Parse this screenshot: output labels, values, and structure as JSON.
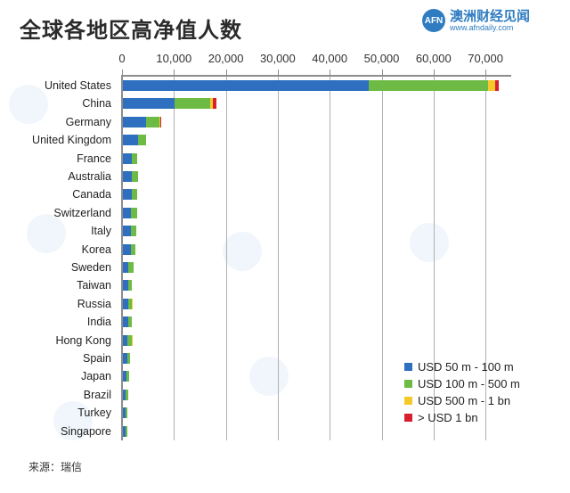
{
  "header": {
    "title": "全球各地区高净值人数",
    "logo_mark": "AFN",
    "logo_name": "澳洲财经见闻",
    "logo_url": "www.afndaily.com"
  },
  "footer": {
    "source": "来源：瑞信"
  },
  "colors": {
    "USD 50 m - 100 m": "#2e6fbf",
    "USD 100 m - 500 m": "#6dbb45",
    "USD 500 m - 1 bn": "#f5c92a",
    "> USD 1 bn": "#d6202f"
  },
  "chart_data": {
    "type": "bar",
    "orientation": "horizontal",
    "stacked": true,
    "title": "全球各地区高净值人数",
    "xlabel": "",
    "ylabel": "",
    "xlim": [
      0,
      75000
    ],
    "xticks": [
      "0",
      "10,000",
      "20,000",
      "30,000",
      "40,000",
      "50,000",
      "60,000",
      "70,000"
    ],
    "grid": true,
    "legend_position": "bottom-right",
    "categories": [
      "United States",
      "China",
      "Germany",
      "United Kingdom",
      "France",
      "Australia",
      "Canada",
      "Switzerland",
      "Italy",
      "Korea",
      "Sweden",
      "Taiwan",
      "Russia",
      "India",
      "Hong Kong",
      "Spain",
      "Japan",
      "Brazil",
      "Turkey",
      "Singapore"
    ],
    "series": [
      {
        "name": "USD 50 m - 100 m",
        "values": [
          47300,
          10000,
          4500,
          2900,
          1700,
          1700,
          1700,
          1600,
          1600,
          1500,
          1100,
          1100,
          1100,
          1000,
          900,
          800,
          700,
          600,
          500,
          500
        ]
      },
      {
        "name": "USD 100 m - 500 m",
        "values": [
          23000,
          6800,
          2500,
          1600,
          1100,
          1200,
          1100,
          1100,
          900,
          900,
          900,
          700,
          700,
          700,
          800,
          600,
          500,
          500,
          400,
          400
        ]
      },
      {
        "name": "USD 500 m - 1 bn",
        "values": [
          1400,
          500,
          200,
          0,
          0,
          0,
          0,
          0,
          0,
          0,
          0,
          0,
          100,
          0,
          100,
          0,
          0,
          0,
          0,
          0
        ]
      },
      {
        "name": "> USD 1 bn",
        "values": [
          700,
          700,
          100,
          0,
          0,
          0,
          0,
          0,
          0,
          0,
          0,
          0,
          0,
          0,
          0,
          0,
          0,
          0,
          0,
          0
        ]
      }
    ]
  },
  "legend": [
    {
      "label": "USD 50 m - 100 m",
      "color": "#2e6fbf"
    },
    {
      "label": "USD 100 m - 500 m",
      "color": "#6dbb45"
    },
    {
      "label": "USD 500 m - 1 bn",
      "color": "#f5c92a"
    },
    {
      "label": "> USD 1 bn",
      "color": "#d6202f"
    }
  ]
}
